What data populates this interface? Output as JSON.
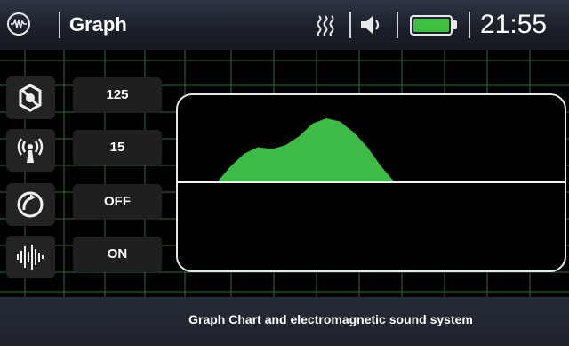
{
  "header": {
    "title": "Graph",
    "time": "21:55",
    "icons": [
      "wave-logo-icon",
      "vibration-icon",
      "speaker-icon",
      "battery-icon"
    ],
    "battery_level": 1.0,
    "battery_color": "#3fbf3f"
  },
  "controls": [
    {
      "icon": "sensitivity-icon",
      "value": "125"
    },
    {
      "icon": "signal-antenna-icon",
      "value": "15"
    },
    {
      "icon": "ground-balance-icon",
      "value": "OFF"
    },
    {
      "icon": "sound-wave-icon",
      "value": "ON"
    }
  ],
  "graph": {
    "fill_color": "#3dbb46",
    "grid_color": "#2f6b3a",
    "signal": [
      0,
      0.25,
      0.45,
      0.55,
      0.52,
      0.58,
      0.72,
      0.92,
      1.0,
      0.95,
      0.78,
      0.55,
      0.25,
      0
    ]
  },
  "footer": {
    "caption": "Graph Chart and electromagnetic sound system"
  }
}
